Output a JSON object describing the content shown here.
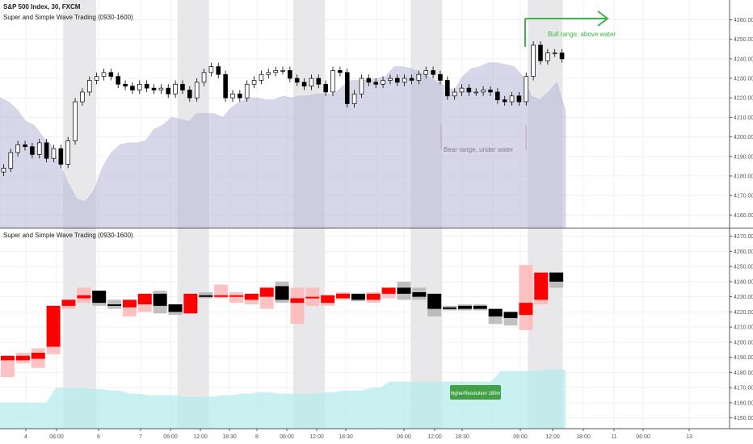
{
  "header": {
    "symbol": "S&P 500 Index, 30, FXCM",
    "indicator_top": "Super and Simple Wave Trading (0930-1600)",
    "indicator_bottom": "Super and Simple Wave Trading (0930-1600)"
  },
  "annotations": {
    "bull": "Bull range, above water",
    "bear": "Bear range, under water",
    "badge": "higherResolution 180m"
  },
  "colors": {
    "grid": "#eef0f3",
    "shade": "#e4e4e8",
    "area_top": "#b7b8d8",
    "area_bottom": "#b8ecec",
    "candle_up": "#ffffff",
    "candle_down": "#000000",
    "wave_red": "#ff0000",
    "wave_pink": "#ffb3b3",
    "wave_black": "#000000",
    "wave_grey": "#b0b0b0",
    "bull_arrow": "#3bb54a",
    "bear_line": "#c8a0b0",
    "badge": "#43a047"
  },
  "chart_data": [
    {
      "type": "candlestick",
      "title": "S&P 500 Index, 30, FXCM",
      "y_ticks": [
        "4260.00",
        "4250.00",
        "4240.00",
        "4230.00",
        "4220.00",
        "4210.00",
        "4200.00",
        "4190.00",
        "4180.00",
        "4170.00",
        "4160.00"
      ],
      "ylim": [
        4156,
        4266
      ],
      "x_ticks": [
        "4",
        "06:00",
        "6",
        "7",
        "06:00",
        "12:00",
        "18:30",
        "8",
        "06:00",
        "12:00",
        "18:30",
        "06:00",
        "12:00",
        "18:30",
        "06:00",
        "12:00",
        "18:00",
        "11",
        "06:00",
        "13"
      ],
      "price": [
        4184,
        4192,
        4196,
        4195,
        4191,
        4197,
        4189,
        4194,
        4186,
        4198,
        4218,
        4223,
        4229,
        4231,
        4233,
        4231,
        4227,
        4226,
        4224,
        4227,
        4225,
        4224,
        4225,
        4222,
        4227,
        4224,
        4220,
        4228,
        4233,
        4236,
        4232,
        4220,
        4222,
        4220,
        4227,
        4229,
        4232,
        4233,
        4234,
        4234,
        4230,
        4228,
        4226,
        4230,
        4227,
        4223,
        4234,
        4233,
        4217,
        4222,
        4230,
        4228,
        4227,
        4229,
        4230,
        4228,
        4230,
        4229,
        4232,
        4234,
        4232,
        4229,
        4221,
        4223,
        4225,
        4223,
        4223,
        4224,
        4223,
        4219,
        4218,
        4221,
        4218,
        4231,
        4247,
        4239,
        4243,
        4243,
        4240
      ],
      "volume_area": [
        4220,
        4218,
        4214,
        4208,
        4206,
        4200,
        4196,
        4186,
        4176,
        4168,
        4167,
        4173,
        4185,
        4192,
        4196,
        4197,
        4197,
        4198,
        4204,
        4206,
        4210,
        4209,
        4208,
        4212,
        4212,
        4212,
        4210,
        4215,
        4218,
        4220,
        4220,
        4219,
        4219,
        4221,
        4220,
        4221,
        4221,
        4222,
        4222,
        4222,
        4226,
        4229,
        4229,
        4229,
        4230,
        4231,
        4236,
        4236,
        4235,
        4233,
        4231,
        4228,
        4226,
        4224,
        4231,
        4235,
        4236,
        4238,
        4238,
        4237,
        4236,
        4231,
        4221,
        4219,
        4223,
        4228,
        4213
      ],
      "shaded_sessions": [
        [
          0.084,
          0.128
        ],
        [
          0.236,
          0.278
        ],
        [
          0.39,
          0.432
        ],
        [
          0.546,
          0.588
        ],
        [
          0.702,
          0.748
        ]
      ]
    },
    {
      "type": "bar",
      "title": "Super and Simple Wave Trading (0930-1600)",
      "y_ticks": [
        "4270.00",
        "4260.00",
        "4250.00",
        "4240.00",
        "4230.00",
        "4220.00",
        "4210.00",
        "4200.00",
        "4190.00",
        "4180.00",
        "4170.00",
        "4160.00",
        "4150.00"
      ],
      "ylim": [
        4145,
        4273
      ],
      "boxes": [
        {
          "open": 4188,
          "close": 4191,
          "high": 4191,
          "low": 4177,
          "color": "red"
        },
        {
          "open": 4188,
          "close": 4191,
          "high": 4193,
          "low": 4186,
          "color": "red"
        },
        {
          "open": 4189,
          "close": 4193,
          "high": 4196,
          "low": 4183,
          "color": "red"
        },
        {
          "open": 4197,
          "close": 4224,
          "high": 4224,
          "low": 4192,
          "color": "red"
        },
        {
          "open": 4224,
          "close": 4228,
          "high": 4228,
          "low": 4222,
          "color": "red"
        },
        {
          "open": 4229,
          "close": 4231,
          "high": 4236,
          "low": 4226,
          "color": "red"
        },
        {
          "open": 4234,
          "close": 4226,
          "high": 4234,
          "low": 4224,
          "color": "black"
        },
        {
          "open": 4225,
          "close": 4224,
          "high": 4228,
          "low": 4222,
          "color": "black"
        },
        {
          "open": 4223,
          "close": 4228,
          "high": 4228,
          "low": 4217,
          "color": "red"
        },
        {
          "open": 4225,
          "close": 4232,
          "high": 4232,
          "low": 4220,
          "color": "red"
        },
        {
          "open": 4232,
          "close": 4224,
          "high": 4234,
          "low": 4219,
          "color": "black"
        },
        {
          "open": 4225,
          "close": 4220,
          "high": 4225,
          "low": 4218,
          "color": "black"
        },
        {
          "open": 4219,
          "close": 4232,
          "high": 4232,
          "low": 4219,
          "color": "red"
        },
        {
          "open": 4231,
          "close": 4231,
          "high": 4233,
          "low": 4229,
          "color": "black"
        },
        {
          "open": 4230,
          "close": 4231,
          "high": 4238,
          "low": 4229,
          "color": "red"
        },
        {
          "open": 4231,
          "close": 4231,
          "high": 4233,
          "low": 4226,
          "color": "red"
        },
        {
          "open": 4228,
          "close": 4232,
          "high": 4232,
          "low": 4225,
          "color": "red"
        },
        {
          "open": 4230,
          "close": 4236,
          "high": 4236,
          "low": 4222,
          "color": "red"
        },
        {
          "open": 4237,
          "close": 4228,
          "high": 4240,
          "low": 4226,
          "color": "black"
        },
        {
          "open": 4226,
          "close": 4229,
          "high": 4236,
          "low": 4212,
          "color": "red"
        },
        {
          "open": 4229,
          "close": 4230,
          "high": 4236,
          "low": 4224,
          "color": "red"
        },
        {
          "open": 4226,
          "close": 4231,
          "high": 4231,
          "low": 4224,
          "color": "red"
        },
        {
          "open": 4229,
          "close": 4232,
          "high": 4233,
          "low": 4228,
          "color": "red"
        },
        {
          "open": 4232,
          "close": 4228,
          "high": 4232,
          "low": 4227,
          "color": "black"
        },
        {
          "open": 4228,
          "close": 4232,
          "high": 4233,
          "low": 4226,
          "color": "red"
        },
        {
          "open": 4232,
          "close": 4236,
          "high": 4236,
          "low": 4229,
          "color": "red"
        },
        {
          "open": 4236,
          "close": 4232,
          "high": 4240,
          "low": 4228,
          "color": "black"
        },
        {
          "open": 4233,
          "close": 4230,
          "high": 4236,
          "low": 4228,
          "color": "black"
        },
        {
          "open": 4232,
          "close": 4222,
          "high": 4232,
          "low": 4217,
          "color": "black"
        },
        {
          "open": 4223,
          "close": 4222,
          "high": 4224,
          "low": 4221,
          "color": "black"
        },
        {
          "open": 4224,
          "close": 4222,
          "high": 4225,
          "low": 4221,
          "color": "black"
        },
        {
          "open": 4224,
          "close": 4222,
          "high": 4225,
          "low": 4221,
          "color": "black"
        },
        {
          "open": 4222,
          "close": 4217,
          "high": 4222,
          "low": 4212,
          "color": "black"
        },
        {
          "open": 4220,
          "close": 4216,
          "high": 4220,
          "low": 4211,
          "color": "black"
        },
        {
          "open": 4218,
          "close": 4226,
          "high": 4251,
          "low": 4208,
          "color": "red"
        },
        {
          "open": 4228,
          "close": 4246,
          "high": 4246,
          "low": 4225,
          "color": "red"
        },
        {
          "open": 4246,
          "close": 4240,
          "high": 4246,
          "low": 4236,
          "color": "black"
        }
      ],
      "volume_area": [
        4160,
        4160,
        4160,
        4160,
        4160,
        4160,
        4170,
        4170,
        4170,
        4170,
        4169,
        4169,
        4168,
        4168,
        4166,
        4166,
        4165,
        4165,
        4165,
        4165,
        4164,
        4164,
        4164,
        4164,
        4165,
        4165,
        4166,
        4166,
        4167,
        4167,
        4166,
        4166,
        4166,
        4166,
        4166,
        4167,
        4167,
        4168,
        4168,
        4168,
        4170,
        4170,
        4174,
        4174,
        4174,
        4174,
        4174,
        4174,
        4174,
        4174,
        4174,
        4174,
        4174,
        4174,
        4181,
        4181,
        4181,
        4181,
        4181,
        4182,
        4182,
        4182
      ]
    }
  ]
}
